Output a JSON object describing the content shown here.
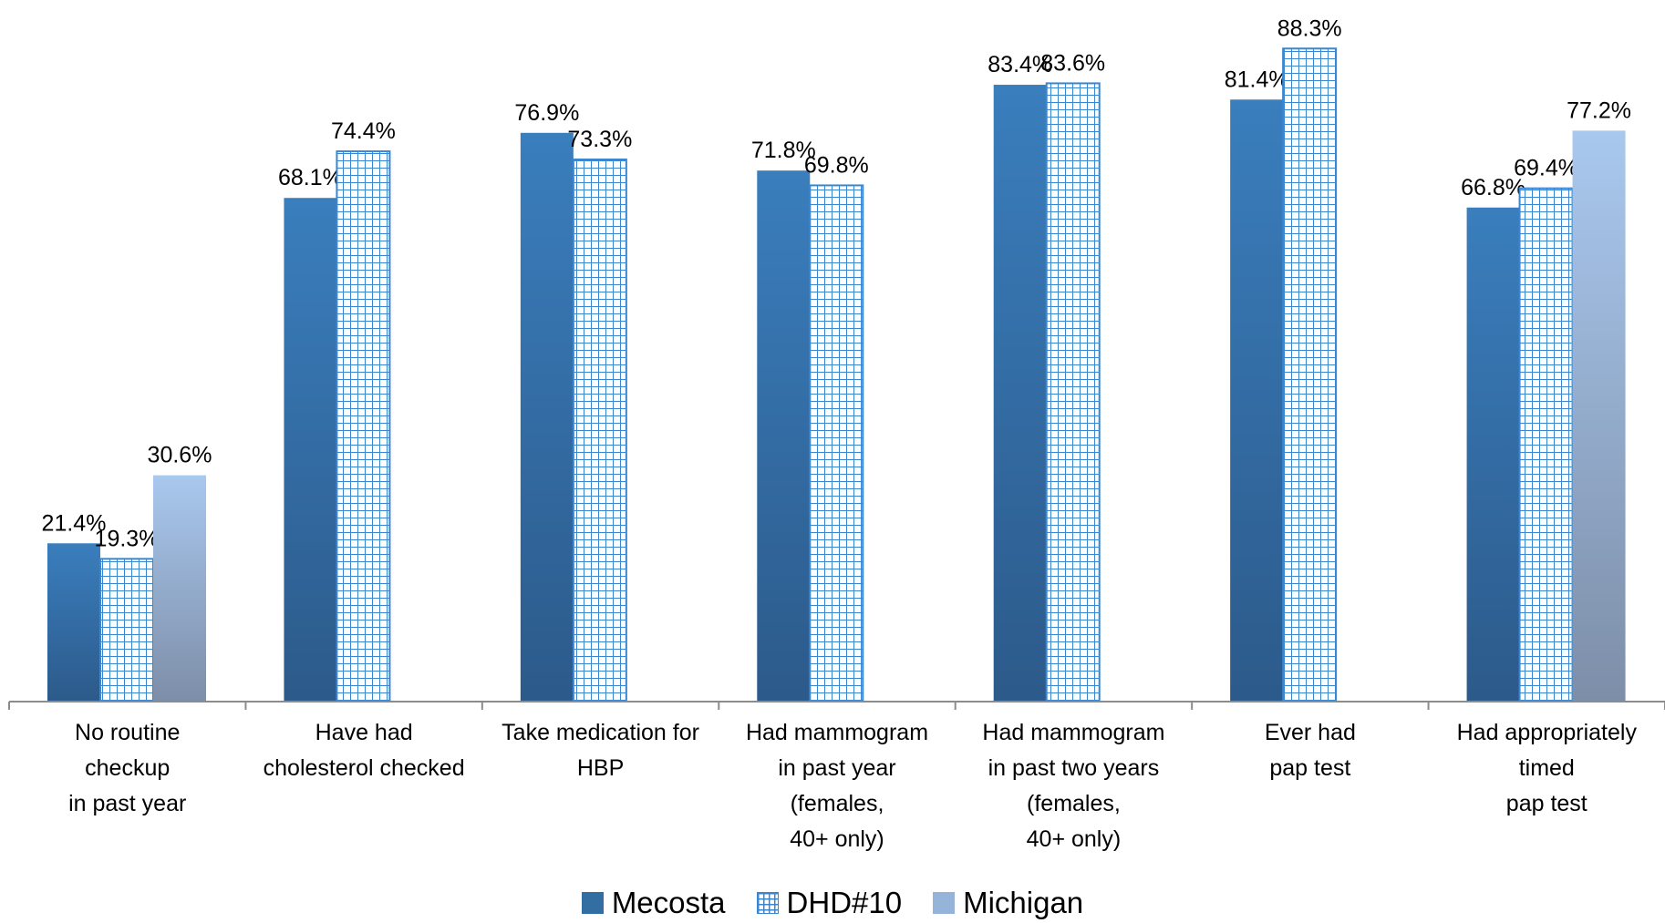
{
  "chart_data": {
    "type": "bar",
    "title": "",
    "xlabel": "",
    "ylabel": "",
    "ylim": [
      0,
      100
    ],
    "grid": false,
    "legend_position": "bottom",
    "categories": [
      [
        "No routine",
        "checkup",
        "in past year"
      ],
      [
        "Have had",
        "cholesterol checked"
      ],
      [
        "Take medication for",
        "HBP"
      ],
      [
        "Had mammogram",
        "in past year",
        "(females,",
        "40+ only)"
      ],
      [
        "Had mammogram",
        "in past two years",
        "(females,",
        "40+ only)"
      ],
      [
        "Ever had",
        "pap test"
      ],
      [
        "Had appropriately",
        "timed",
        "pap test"
      ]
    ],
    "series": [
      {
        "name": "Mecosta",
        "style": "solid",
        "color_top": "#3a7ebd",
        "color_bottom": "#2c5a8a",
        "values": [
          21.4,
          68.1,
          76.9,
          71.8,
          83.4,
          81.4,
          66.8
        ],
        "labels": [
          "21.4%",
          "68.1%",
          "76.9%",
          "71.8%",
          "83.4%",
          "81.4%",
          "66.8%"
        ]
      },
      {
        "name": "DHD#10",
        "style": "grid",
        "color_top": "#3a86d0",
        "color_bottom": "#3a86d0",
        "values": [
          19.3,
          74.4,
          73.3,
          69.8,
          83.6,
          88.3,
          69.4
        ],
        "labels": [
          "19.3%",
          "74.4%",
          "73.3%",
          "69.8%",
          "83.6%",
          "88.3%",
          "69.4%"
        ]
      },
      {
        "name": "Michigan",
        "style": "solid",
        "color_top": "#a9c8ee",
        "color_bottom": "#7d8ea8",
        "values": [
          30.6,
          null,
          null,
          null,
          null,
          null,
          77.2
        ],
        "labels": [
          "30.6%",
          "",
          "",
          "",
          "",
          "",
          "77.2%"
        ]
      }
    ]
  }
}
